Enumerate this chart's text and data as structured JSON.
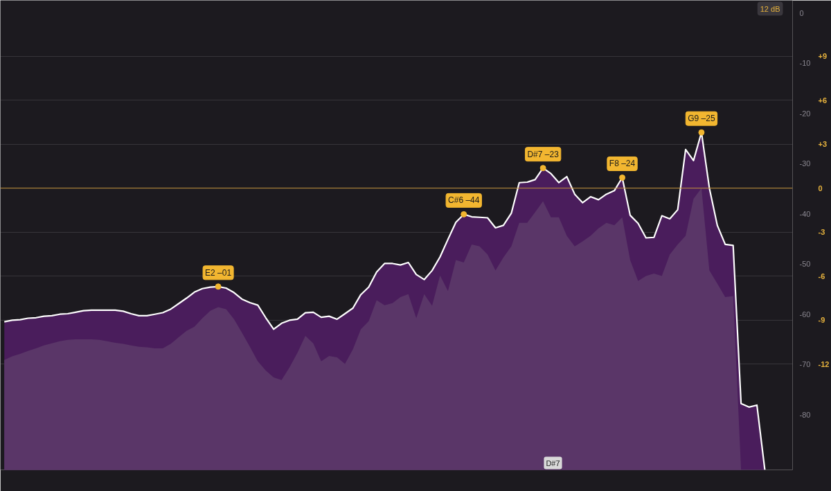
{
  "chart_data": {
    "type": "area",
    "categories": [
      null,
      null,
      null,
      null,
      null,
      null,
      null,
      null,
      null,
      null,
      null,
      null,
      null,
      null,
      null,
      null,
      null,
      null,
      null,
      null,
      null,
      null,
      null,
      null,
      null,
      null,
      null,
      null,
      null,
      null,
      null,
      null,
      null,
      null,
      null,
      null,
      null,
      null,
      null,
      null,
      null,
      null,
      null,
      null,
      null,
      null,
      null,
      null,
      null,
      null,
      null,
      null,
      null,
      null,
      null,
      null,
      null,
      null,
      null,
      null,
      null,
      null,
      null,
      null,
      null,
      null,
      null,
      null,
      null,
      null,
      null,
      null,
      null,
      null,
      null,
      null,
      null,
      null,
      null,
      null,
      null,
      null,
      null,
      null,
      null,
      null,
      null,
      null,
      null,
      null,
      null,
      null,
      null,
      null,
      null,
      null,
      null,
      null,
      null,
      null
    ],
    "series": [
      {
        "color": "#4a1d5c",
        "values": [
          -61.5,
          -61.2,
          -61.1,
          -60.8,
          -60.7,
          -60.4,
          -60.3,
          -60.0,
          -59.9,
          -59.6,
          -59.3,
          -59.2,
          -59.2,
          -59.2,
          -59.2,
          -59.4,
          -59.9,
          -60.3,
          -60.3,
          -60.0,
          -59.7,
          -59.0,
          -57.9,
          -56.8,
          -55.6,
          -54.9,
          -54.6,
          -54.5,
          -54.8,
          -55.7,
          -57.0,
          -57.7,
          -58.2,
          -60.7,
          -63.0,
          -61.8,
          -61.2,
          -61.0,
          -59.7,
          -59.6,
          -60.6,
          -60.4,
          -61.0,
          -59.9,
          -58.8,
          -56.1,
          -54.6,
          -51.6,
          -49.9,
          -49.9,
          -50.2,
          -49.7,
          -52.1,
          -53.1,
          -51.3,
          -48.6,
          -45.1,
          -41.7,
          -40.1,
          -40.6,
          -40.7,
          -40.8,
          -42.8,
          -42.3,
          -39.9,
          -33.8,
          -33.7,
          -33.2,
          -30.9,
          -32.0,
          -33.8,
          -32.6,
          -36.1,
          -37.8,
          -36.6,
          -37.2,
          -36.1,
          -35.4,
          -32.8,
          -40.3,
          -41.9,
          -44.8,
          -44.7,
          -40.4,
          -41.0,
          -39.2,
          -27.2,
          -29.4,
          -23.8,
          -34.9,
          -42.3,
          -46.1,
          -46.3,
          -77.8,
          -78.5,
          -78.1,
          -91.0,
          null,
          null,
          null
        ]
      },
      {
        "color": "#5a3668",
        "values": [
          -69.1,
          -68.4,
          -67.9,
          -67.3,
          -66.8,
          -66.2,
          -65.8,
          -65.4,
          -65.1,
          -65.0,
          -65.0,
          -65.0,
          -65.1,
          -65.4,
          -65.7,
          -65.9,
          -66.2,
          -66.5,
          -66.6,
          -66.8,
          -66.8,
          -65.9,
          -64.6,
          -63.3,
          -62.5,
          -60.8,
          -59.3,
          -58.6,
          -59.0,
          -61.0,
          -63.7,
          -66.5,
          -69.4,
          -71.2,
          -72.6,
          -73.1,
          -70.6,
          -67.7,
          -64.3,
          -65.8,
          -69.4,
          -68.3,
          -68.6,
          -69.9,
          -67.0,
          -63.0,
          -61.4,
          -57.2,
          -58.2,
          -57.8,
          -56.6,
          -56.0,
          -60.8,
          -56.0,
          -58.3,
          -52.3,
          -55.4,
          -49.2,
          -49.7,
          -46.1,
          -46.5,
          -48.1,
          -51.3,
          -48.7,
          -46.5,
          -41.8,
          -41.8,
          -39.7,
          -37.5,
          -40.7,
          -40.7,
          -44.4,
          -46.5,
          -45.5,
          -44.4,
          -42.9,
          -41.8,
          -42.3,
          -40.7,
          -49.2,
          -53.4,
          -52.4,
          -51.9,
          -52.4,
          -48.1,
          -46.1,
          -44.4,
          -37.0,
          -34.9,
          -51.3,
          -53.9,
          -56.6,
          -56.4,
          -91.0,
          null,
          null,
          null,
          null,
          null,
          null
        ]
      }
    ],
    "ylim": [
      -91.0,
      2.5
    ],
    "yticks": [
      0,
      -10,
      -20,
      -30,
      -40,
      -50,
      -60,
      -70,
      -80
    ],
    "y2lim": [
      -19.2,
      12.8
    ],
    "y2ticks": [
      {
        "value": 9,
        "label": "+9"
      },
      {
        "value": 6,
        "label": "+6"
      },
      {
        "value": 3,
        "label": "+3"
      },
      0,
      -3,
      -6,
      -9,
      -12
    ],
    "ref_lines": [
      {
        "axis": "y2",
        "value": 0,
        "color": "#c8973a"
      }
    ],
    "grid": "y",
    "tick_labels": "y",
    "annotations": [
      {
        "text": "E2 –01",
        "y": -54.5
      },
      {
        "text": "C#6 –44",
        "y": -40.1
      },
      {
        "text": "D#7 –23",
        "y": -30.9
      },
      {
        "text": "F8 –24",
        "y": -32.8
      },
      {
        "text": "G9 –25",
        "y": -23.8
      },
      "12 dB",
      "D#7"
    ]
  }
}
